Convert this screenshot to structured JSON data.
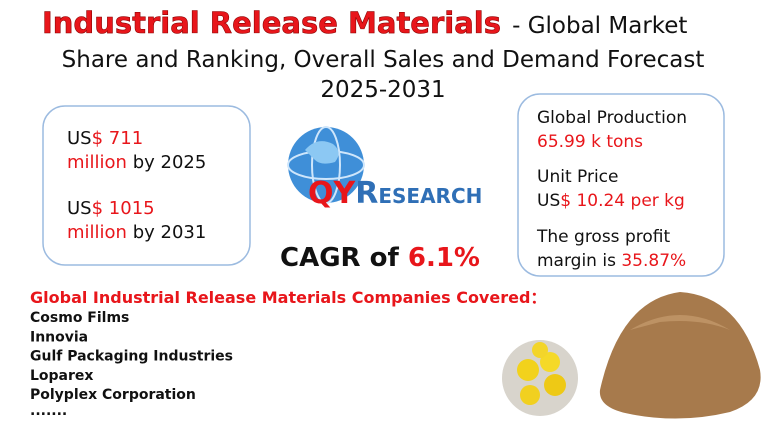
{
  "header": {
    "title_highlight": "Industrial Release Materials",
    "title_line1_rest": "- Global Market",
    "title_line2": "Share and Ranking, Overall Sales and Demand Forecast",
    "title_line3": "2025-2031"
  },
  "market": [
    {
      "prefix": "US",
      "value": "$ 711",
      "unit": "million",
      "suffix": "by 2025"
    },
    {
      "prefix": "US",
      "value": "$ 1015",
      "unit": "million",
      "suffix": "by 2031"
    }
  ],
  "logo": {
    "part_a": "QY",
    "part_b": "R",
    "part_c": "ESEARCH"
  },
  "cagr": {
    "label": "CAGR of",
    "value": "6.1%"
  },
  "stats": {
    "production_label": "Global Production",
    "production_value": "65.99 k tons",
    "price_label": "Unit Price",
    "price_prefix": "US",
    "price_value": "$ 10.24 per kg",
    "margin_line1": "The gross profit",
    "margin_line2": "margin is",
    "margin_value": "35.87%"
  },
  "companies": {
    "heading": "Global Industrial Release Materials Companies Covered：",
    "list": [
      "Cosmo Films",
      "Innovia",
      "Gulf Packaging Industries",
      "Loparex",
      "Polyplex Corporation"
    ],
    "more": "·······"
  }
}
